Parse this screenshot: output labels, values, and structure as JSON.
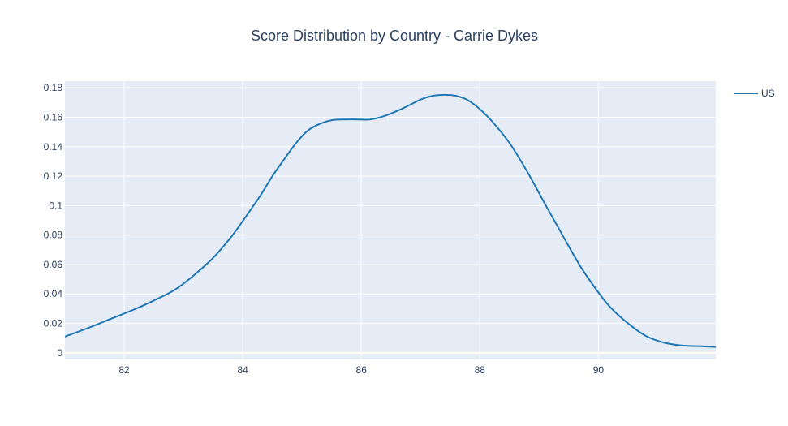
{
  "chart_data": {
    "type": "line",
    "title": "Score Distribution by Country - Carrie Dykes",
    "xlabel": "",
    "ylabel": "",
    "xlim": [
      81.0,
      91.98
    ],
    "ylim": [
      -0.0045,
      0.1845
    ],
    "x_ticks": [
      82,
      84,
      86,
      88,
      90
    ],
    "x_tick_labels": [
      "82",
      "84",
      "86",
      "88",
      "90"
    ],
    "y_ticks": [
      0,
      0.02,
      0.04,
      0.06,
      0.08,
      0.1,
      0.12,
      0.14,
      0.16,
      0.18
    ],
    "y_tick_labels": [
      "0",
      "0.02",
      "0.04",
      "0.06",
      "0.08",
      "0.1",
      "0.12",
      "0.14",
      "0.16",
      "0.18"
    ],
    "grid": true,
    "legend_position": "top-right",
    "series": [
      {
        "name": "US",
        "color": "#1f77b4",
        "x": [
          81.0,
          81.4,
          81.8,
          82.2,
          82.5,
          82.8,
          83.0,
          83.2,
          83.5,
          83.8,
          84.0,
          84.3,
          84.5,
          84.7,
          84.9,
          85.1,
          85.3,
          85.5,
          85.7,
          85.95,
          86.15,
          86.4,
          86.7,
          87.0,
          87.2,
          87.4,
          87.6,
          87.8,
          88.0,
          88.2,
          88.5,
          88.8,
          89.1,
          89.4,
          89.7,
          90.0,
          90.2,
          90.5,
          90.8,
          91.1,
          91.4,
          91.7,
          91.98
        ],
        "y": [
          0.011,
          0.017,
          0.0235,
          0.03,
          0.0355,
          0.0415,
          0.047,
          0.0535,
          0.0645,
          0.0785,
          0.0895,
          0.107,
          0.12,
          0.1315,
          0.1425,
          0.151,
          0.1555,
          0.158,
          0.1585,
          0.1585,
          0.1585,
          0.161,
          0.166,
          0.172,
          0.1745,
          0.1752,
          0.1745,
          0.1715,
          0.1655,
          0.1575,
          0.1425,
          0.123,
          0.101,
          0.0795,
          0.0585,
          0.041,
          0.031,
          0.02,
          0.0115,
          0.007,
          0.005,
          0.0045,
          0.004
        ]
      }
    ]
  }
}
